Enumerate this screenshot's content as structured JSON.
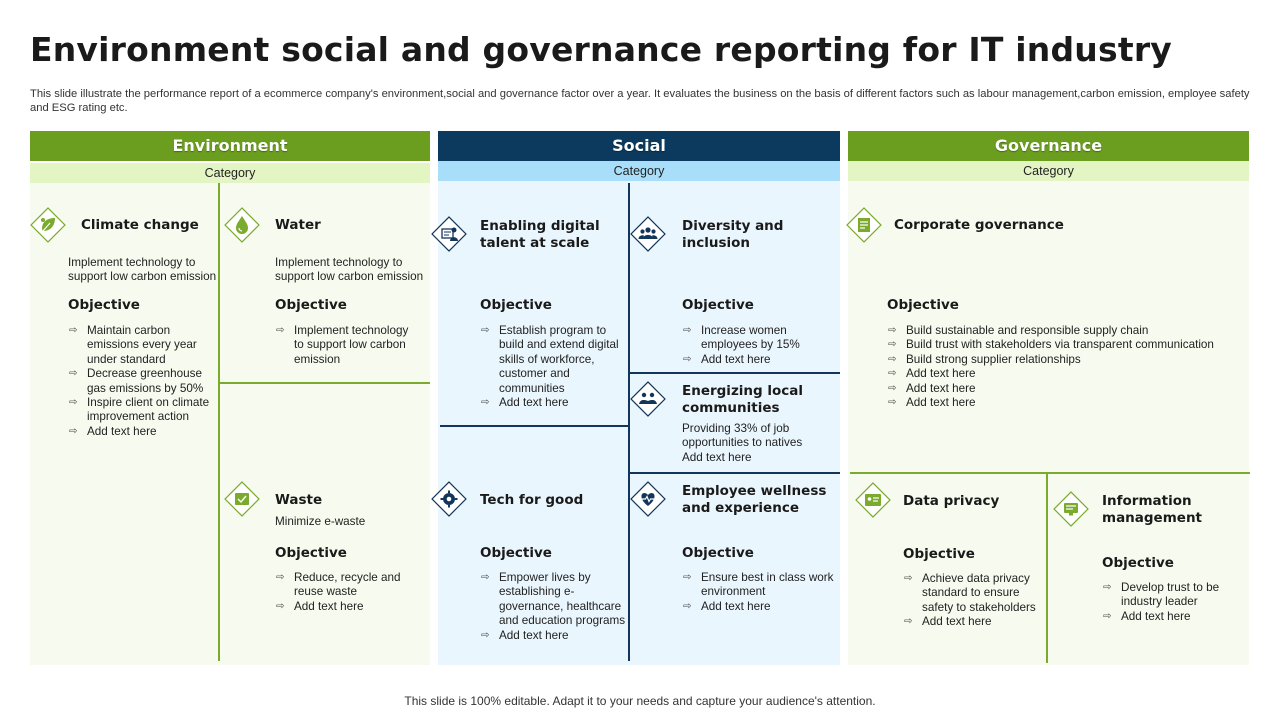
{
  "title": "Environment social and governance reporting for IT industry",
  "description": "This slide illustrate the performance report of a ecommerce company's environment,social and governance factor over a year. It evaluates the business on the basis of different factors such as labour management,carbon emission, employee safety and ESG rating etc.",
  "footer": "This slide is 100% editable. Adapt it to your needs and capture your audience's attention.",
  "colors": {
    "green_header": "#6b9e1f",
    "green_category": "#e4f5c4",
    "green_panel": "#f7fbef",
    "navy_header": "#0c3a5e",
    "blue_category": "#a9defa",
    "blue_panel": "#eaf6fd"
  },
  "objective_label": "Objective",
  "environment": {
    "header": "Environment",
    "category": "Category",
    "climate": {
      "icon": "leaf-recycle-icon",
      "title": "Climate change",
      "text": "Implement technology to support low carbon emission",
      "items": [
        "Maintain carbon emissions every year under standard",
        "Decrease greenhouse gas emissions by 50%",
        "Inspire client on climate improvement action",
        "Add text here"
      ]
    },
    "water": {
      "icon": "water-drop-icon",
      "title": "Water",
      "text": "Implement technology to support low carbon emission",
      "items": [
        "Implement technology to support low carbon emission"
      ]
    },
    "waste": {
      "icon": "recycle-bin-icon",
      "title": "Waste",
      "text": "Minimize e-waste",
      "items": [
        "Reduce, recycle and reuse waste",
        "Add text here"
      ]
    }
  },
  "social": {
    "header": "Social",
    "category": "Category",
    "digital": {
      "icon": "digital-talent-icon",
      "title": "Enabling digital talent at scale",
      "items": [
        "Establish program to build and extend digital skills of workforce, customer and communities",
        "Add text here"
      ]
    },
    "diversity": {
      "icon": "people-group-icon",
      "title": "Diversity and inclusion",
      "items": [
        "Increase women employees by 15%",
        "Add text here"
      ]
    },
    "communities": {
      "icon": "community-hands-icon",
      "title": "Energizing local communities",
      "text": "Providing 33% of job opportunities to natives Add text here"
    },
    "tech": {
      "icon": "globe-gear-icon",
      "title": "Tech for good",
      "items": [
        "Empower lives by establishing e-governance, healthcare and education programs",
        "Add text here"
      ]
    },
    "wellness": {
      "icon": "heart-pulse-icon",
      "title": "Employee wellness and experience",
      "items": [
        "Ensure best in class work environment",
        "Add text here"
      ]
    }
  },
  "governance": {
    "header": "Governance",
    "category": "Category",
    "corporate": {
      "icon": "document-building-icon",
      "title": "Corporate governance",
      "items": [
        "Build sustainable and responsible supply chain",
        "Build trust with stakeholders via transparent communication",
        "Build strong supplier relationships",
        "Add text here",
        "Add text here",
        "Add text here"
      ]
    },
    "privacy": {
      "icon": "id-card-lock-icon",
      "title": "Data privacy",
      "items": [
        "Achieve data privacy standard to ensure safety to stakeholders",
        "Add text here"
      ]
    },
    "info": {
      "icon": "database-monitor-icon",
      "title": "Information management",
      "items": [
        "Develop trust to be industry leader",
        "Add text here"
      ]
    }
  }
}
